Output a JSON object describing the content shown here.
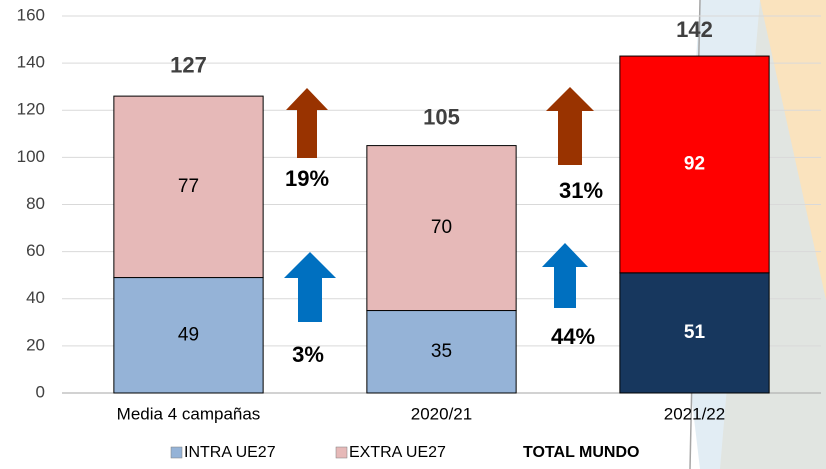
{
  "chart_data": {
    "type": "stacked_bar",
    "categories": [
      "Media 4 campañas",
      "2020/21",
      "2021/22"
    ],
    "series": [
      {
        "name": "INTRA UE27",
        "color": "#95b3d7",
        "point_colors": [
          "#95b3d7",
          "#95b3d7",
          "#17375e"
        ],
        "label_colors": [
          "#000000",
          "#000000",
          "#ffffff"
        ],
        "values": [
          49,
          35,
          51
        ]
      },
      {
        "name": "EXTRA UE27",
        "color": "#e6b9b8",
        "point_colors": [
          "#e6b9b8",
          "#e6b9b8",
          "#ff0000"
        ],
        "label_colors": [
          "#000000",
          "#000000",
          "#ffffff"
        ],
        "values": [
          77,
          70,
          92
        ]
      }
    ],
    "total": {
      "name": "TOTAL MUNDO",
      "values": [
        127,
        105,
        142
      ]
    },
    "annotations": [
      "19%",
      "3%",
      "31%",
      "44%"
    ],
    "ylim": [
      0,
      160
    ],
    "yticks": [
      0,
      20,
      40,
      60,
      80,
      100,
      120,
      140,
      160
    ],
    "grid": true
  }
}
